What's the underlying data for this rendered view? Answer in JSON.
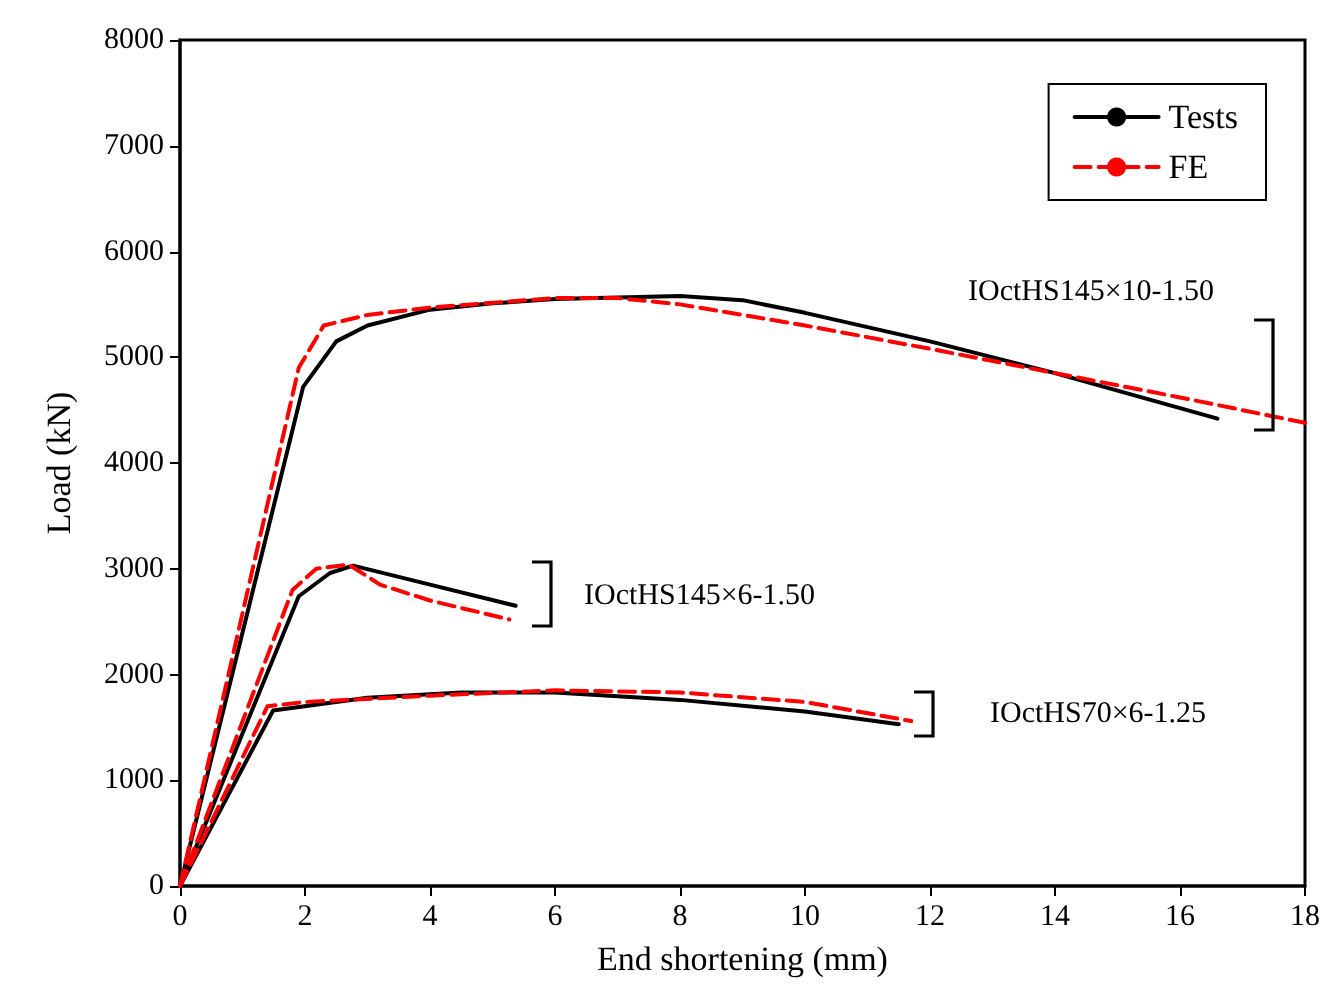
{
  "chart_data": {
    "type": "line",
    "xlabel": "End shortening (mm)",
    "ylabel": "Load (kN)",
    "xlim": [
      0,
      18
    ],
    "xticks": [
      0,
      2,
      4,
      6,
      8,
      10,
      12,
      14,
      16,
      18
    ],
    "ylim": [
      0,
      8000
    ],
    "yticks": [
      0,
      1000,
      2000,
      3000,
      4000,
      5000,
      6000,
      7000,
      8000
    ],
    "grid": false,
    "legend": "top right",
    "marker": "none",
    "series": [
      {
        "name": "Tests",
        "color": "#000000",
        "line_style": "solid",
        "x": [
          0,
          1.97,
          2.5,
          3,
          4,
          5,
          6,
          8,
          9,
          10,
          12,
          14,
          16.6,
          null,
          0,
          1.9,
          2.4,
          2.77,
          4,
          5.37,
          null,
          0,
          1.49,
          3,
          4.5,
          6,
          8,
          10,
          11.5
        ],
        "values": [
          0,
          4720,
          5150,
          5300,
          5450,
          5510,
          5550,
          5580,
          5540,
          5420,
          5150,
          4850,
          4420,
          null,
          0,
          2740,
          2960,
          3030,
          2850,
          2650,
          null,
          0,
          1660,
          1780,
          1830,
          1830,
          1760,
          1650,
          1530
        ]
      },
      {
        "name": "FE",
        "color": "#ff0000",
        "line_style": "dashed",
        "x": [
          0,
          1.9,
          2.3,
          3,
          4,
          6,
          7,
          8,
          10,
          12,
          14,
          16,
          18,
          null,
          0,
          1.8,
          2.18,
          2.7,
          3.2,
          4,
          5.27,
          null,
          0,
          1.4,
          2,
          4,
          6,
          8,
          10,
          11.7
        ],
        "values": [
          0,
          4900,
          5300,
          5400,
          5470,
          5560,
          5560,
          5500,
          5300,
          5080,
          4850,
          4620,
          4380,
          null,
          0,
          2800,
          3000,
          3040,
          2850,
          2700,
          2520,
          null,
          0,
          1700,
          1740,
          1800,
          1850,
          1830,
          1740,
          1560
        ]
      }
    ],
    "annotations": [
      "IOctHS145×10-1.50",
      "IOctHS145×6-1.50",
      "IOctHS70×6-1.25"
    ]
  }
}
